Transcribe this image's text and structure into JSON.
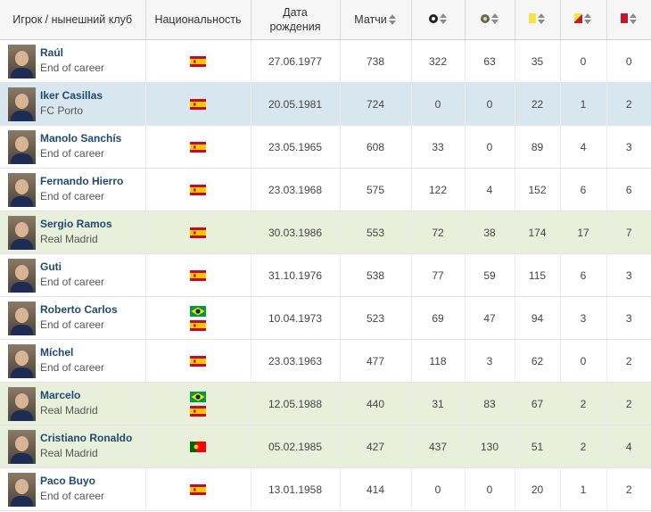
{
  "header": {
    "player": "Игрок / нынешний клуб",
    "nationality": "Национальность",
    "birth_line1": "Дата",
    "birth_line2": "рождения",
    "matches": "Матчи"
  },
  "icons": {
    "goals": "ball-icon",
    "assists": "assist-ball-icon",
    "yellow": "yellow-card-icon",
    "second_yellow": "yellow-red-card-icon",
    "red": "red-card-icon"
  },
  "colors": {
    "name_link": "#1f4a72",
    "row_highlight_blue": "#d8e6ef",
    "row_highlight_green": "#e8f0dc"
  },
  "rows": [
    {
      "name": "Raúl",
      "club": "End of career",
      "flags": [
        "es"
      ],
      "birth": "27.06.1977",
      "matches": "738",
      "goals": "322",
      "assists": "63",
      "yellow": "35",
      "yellow_red": "0",
      "red": "0",
      "highlight": ""
    },
    {
      "name": "Iker Casillas",
      "club": "FC Porto",
      "flags": [
        "es"
      ],
      "birth": "20.05.1981",
      "matches": "724",
      "goals": "0",
      "assists": "0",
      "yellow": "22",
      "yellow_red": "1",
      "red": "2",
      "highlight": "blue"
    },
    {
      "name": "Manolo Sanchís",
      "club": "End of career",
      "flags": [
        "es"
      ],
      "birth": "23.05.1965",
      "matches": "608",
      "goals": "33",
      "assists": "0",
      "yellow": "89",
      "yellow_red": "4",
      "red": "3",
      "highlight": ""
    },
    {
      "name": "Fernando Hierro",
      "club": "End of career",
      "flags": [
        "es"
      ],
      "birth": "23.03.1968",
      "matches": "575",
      "goals": "122",
      "assists": "4",
      "yellow": "152",
      "yellow_red": "6",
      "red": "6",
      "highlight": ""
    },
    {
      "name": "Sergio Ramos",
      "club": "Real Madrid",
      "flags": [
        "es"
      ],
      "birth": "30.03.1986",
      "matches": "553",
      "goals": "72",
      "assists": "38",
      "yellow": "174",
      "yellow_red": "17",
      "red": "7",
      "highlight": "green"
    },
    {
      "name": "Guti",
      "club": "End of career",
      "flags": [
        "es"
      ],
      "birth": "31.10.1976",
      "matches": "538",
      "goals": "77",
      "assists": "59",
      "yellow": "115",
      "yellow_red": "6",
      "red": "3",
      "highlight": ""
    },
    {
      "name": "Roberto Carlos",
      "club": "End of career",
      "flags": [
        "br",
        "es"
      ],
      "birth": "10.04.1973",
      "matches": "523",
      "goals": "69",
      "assists": "47",
      "yellow": "94",
      "yellow_red": "3",
      "red": "3",
      "highlight": ""
    },
    {
      "name": "Míchel",
      "club": "End of career",
      "flags": [
        "es"
      ],
      "birth": "23.03.1963",
      "matches": "477",
      "goals": "118",
      "assists": "3",
      "yellow": "62",
      "yellow_red": "0",
      "red": "2",
      "highlight": ""
    },
    {
      "name": "Marcelo",
      "club": "Real Madrid",
      "flags": [
        "br",
        "es"
      ],
      "birth": "12.05.1988",
      "matches": "440",
      "goals": "31",
      "assists": "83",
      "yellow": "67",
      "yellow_red": "2",
      "red": "2",
      "highlight": "green"
    },
    {
      "name": "Cristiano Ronaldo",
      "club": "Real Madrid",
      "flags": [
        "pt"
      ],
      "birth": "05.02.1985",
      "matches": "427",
      "goals": "437",
      "assists": "130",
      "yellow": "51",
      "yellow_red": "2",
      "red": "4",
      "highlight": "green"
    },
    {
      "name": "Paco Buyo",
      "club": "End of career",
      "flags": [
        "es"
      ],
      "birth": "13.01.1958",
      "matches": "414",
      "goals": "0",
      "assists": "0",
      "yellow": "20",
      "yellow_red": "1",
      "red": "2",
      "highlight": ""
    }
  ]
}
